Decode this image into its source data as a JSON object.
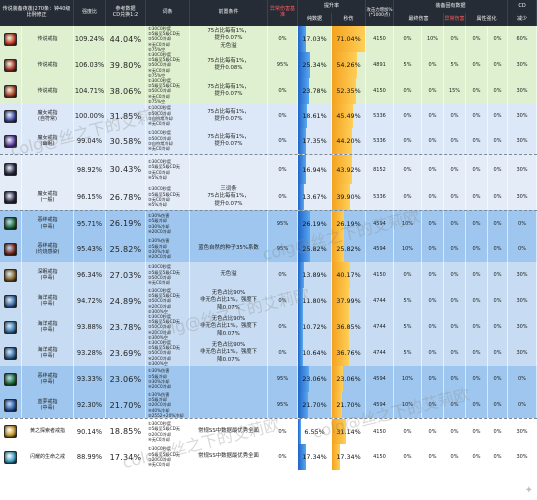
{
  "header": {
    "corner": "传说装备夜莲(270条：钟40级\n比例修正",
    "strength": "强度比",
    "cd_ref": "参考数据\nCD兑换1:2",
    "entry": "词条",
    "prereq": "前置条件",
    "anomaly": "异常伤害基准",
    "boost": "提升率",
    "pure": "纯数据",
    "sec": "秒伤",
    "base_dmg": "攻击力增加%\n(*1000点)",
    "equip_group": "装备固有数据",
    "eq_final": "最终伤害",
    "eq_overall": "整体",
    "eq_special": "特殊",
    "eq_anomaly": "异常伤害",
    "eq_attr": "属性强化",
    "cd_group": "CD",
    "cd_reduce": "减少"
  },
  "rows": [
    {
      "name": "传说戒指",
      "str": "109.24%",
      "cd": "44.04%",
      "desc": "①30C0秒度\n②5级至5级CD无\n③50C0冷却\n④无C0冷却\n⑤75%空",
      "pre": "75占比每有1%，\n提升0.07%\n无色溢",
      "anom": "0%",
      "pure": "17.03%",
      "pure_v": 17.03,
      "sec": "71.04%",
      "sec_v": 71.04,
      "b1": "4150",
      "eq": "0%",
      "e1": "10%",
      "e2": "0%",
      "e3": "0%",
      "e4": "0%",
      "cdr": "60%",
      "bg": "#dff0d0",
      "icon": "#c83a24"
    },
    {
      "name": "传说戒指",
      "str": "106.03%",
      "cd": "39.80%",
      "desc": "①30C0秒度\n②5级至5级CD无\n③50C0冷却\n④无C0冷却\n⑤75%空",
      "pre": "75占比每有1%，\n提升0.08%",
      "anom": "95%",
      "pure": "25.34%",
      "pure_v": 25.34,
      "sec": "54.26%",
      "sec_v": 54.26,
      "b1": "4891",
      "eq": "5%",
      "e1": "0%",
      "e2": "5%",
      "e3": "0%",
      "e4": "0%",
      "cdr": "30%",
      "bg": "#dff0d0",
      "icon": "#a8342a"
    },
    {
      "name": "传说戒指",
      "str": "104.71%",
      "cd": "38.06%",
      "desc": "①30C0秒度\n②5级至5级CD无\n③50C0冷却\n④无C0冷却\n⑤75%空",
      "pre": "75占比每有1%，\n提升0.07%",
      "anom": "0%",
      "pure": "23.78%",
      "pure_v": 23.78,
      "sec": "52.35%",
      "sec_v": 52.35,
      "b1": "4150",
      "eq": "0%",
      "e1": "0%",
      "e2": "15%",
      "e3": "0%",
      "e4": "0%",
      "cdr": "30%",
      "bg": "#dff0d0",
      "icon": "#b04428"
    },
    {
      "name": "魔女戒指\n(自符常)",
      "str": "100.00%",
      "cd": "31.85%",
      "desc": "①10C0秒度\n②50C0冷却\n③自符常冷却\n④无C0冷却",
      "pre": "75占比每有1%，\n提升0.07%",
      "anom": "0%",
      "pure": "18.61%",
      "pure_v": 18.61,
      "sec": "45.49%",
      "sec_v": 45.49,
      "b1": "5336",
      "eq": "0%",
      "e1": "0%",
      "e2": "0%",
      "e3": "0%",
      "e4": "0%",
      "cdr": "30%",
      "bg": "#dce8f7",
      "icon": "#3d4aa0"
    },
    {
      "name": "魔女戒指\n(幽眠)",
      "str": "99.04%",
      "cd": "30.58%",
      "desc": "①10C0秒度\n②50C0冷却\n③自符常冷却\n④无C0冷却",
      "pre": "75占比每有1%，\n提升0.07%",
      "anom": "0%",
      "pure": "17.35%",
      "pure_v": 17.35,
      "sec": "44.20%",
      "sec_v": 44.2,
      "b1": "5336",
      "eq": "0%",
      "e1": "0%",
      "e2": "0%",
      "e3": "0%",
      "e4": "0%",
      "cdr": "30%",
      "bg": "#dce8f7",
      "icon": "#5a3c9c"
    },
    {
      "name": "",
      "str": "98.92%",
      "cd": "30.43%",
      "desc": "①30C0秒度\n②5级至5级CD无\n③无C0冷却\n④5%冷却",
      "pre": "",
      "anom": "0%",
      "pure": "16.94%",
      "pure_v": 16.94,
      "sec": "43.92%",
      "sec_v": 43.92,
      "b1": "8152",
      "eq": "0%",
      "e1": "0%",
      "e2": "0%",
      "e3": "0%",
      "e4": "0%",
      "cdr": "30%",
      "bg": "#e4ecf8",
      "icon": "#2b2b46"
    },
    {
      "name": "魔女戒指\n(一般)",
      "str": "96.15%",
      "cd": "26.78%",
      "desc": "①30C0秒度\n②5级至5级CD无\n③无C0冷却\n④5%冷却",
      "pre": "三词条\n75占比每有1%，\n提升0.07%",
      "anom": "0%",
      "pure": "13.67%",
      "pure_v": 13.67,
      "sec": "39.90%",
      "sec_v": 39.9,
      "b1": "5336",
      "eq": "0%",
      "e1": "0%",
      "e2": "0%",
      "e3": "0%",
      "e4": "0%",
      "cdr": "30%",
      "bg": "#e4ecf8",
      "icon": "#2b2b46"
    },
    {
      "name": "恶绊戒指\n(中毒)",
      "str": "95.71%",
      "cd": "26.19%",
      "desc": "①30%伤害\n②5级冷却\n③30%冷却\n④20C0冷却",
      "pre": "",
      "anom": "95%",
      "pure": "26.19%",
      "pure_v": 26.19,
      "sec": "26.19%",
      "sec_v": 26.19,
      "b1": "4594",
      "eq": "10%",
      "e1": "0%",
      "e2": "0%",
      "e3": "0%",
      "e4": "0%",
      "cdr": "0%",
      "bg": "#9ec6ee",
      "icon": "#1f6e3a"
    },
    {
      "name": "恶绊戒指\n(灼烧感染)",
      "str": "95.43%",
      "cd": "25.82%",
      "desc": "①30%伤害\n②5级冷却\n③30%冷却\n④20C0冷却",
      "pre": "蓝色自然的种子35%系数",
      "anom": "95%",
      "pure": "25.82%",
      "pure_v": 25.82,
      "sec": "25.82%",
      "sec_v": 25.82,
      "b1": "4594",
      "eq": "10%",
      "e1": "0%",
      "e2": "0%",
      "e3": "0%",
      "e4": "0%",
      "cdr": "0%",
      "bg": "#9ec6ee",
      "icon": "#7a2a18"
    },
    {
      "name": "深眠戒指\n(中毒)",
      "str": "96.34%",
      "cd": "27.03%",
      "desc": "①30C0秒度\n②5级至5级CD无\n③50C0冷却\n④无C0冷却",
      "pre": "无色溢",
      "anom": "0%",
      "pure": "13.89%",
      "pure_v": 13.89,
      "sec": "40.17%",
      "sec_v": 40.17,
      "b1": "4150",
      "eq": "0%",
      "e1": "0%",
      "e2": "0%",
      "e3": "0%",
      "e4": "0%",
      "cdr": "30%",
      "bg": "#c7dcf2",
      "icon": "#8c6a2a"
    },
    {
      "name": "海洋戒指\n(中毒)",
      "str": "94.72%",
      "cd": "24.89%",
      "desc": "①30C0秒度\n②5级至5级CD无\n③50C0冷却\n④20C0冷却\n⑤300%空",
      "pre": "无色占比90%\n非无色占比1%，强度下\n降0.07%",
      "anom": "0%",
      "pure": "11.80%",
      "pure_v": 11.8,
      "sec": "37.99%",
      "sec_v": 37.99,
      "b1": "4744",
      "eq": "5%",
      "e1": "0%",
      "e2": "0%",
      "e3": "0%",
      "e4": "0%",
      "cdr": "30%",
      "bg": "#c7dcf2",
      "icon": "#3a6ea8"
    },
    {
      "name": "海洋戒指\n(中毒)",
      "str": "93.88%",
      "cd": "23.78%",
      "desc": "①30C0秒度\n②5级至5级CD无\n③50C0冷却\n④20C0冷却\n⑤300%空",
      "pre": "无色占比90%\n非无色占比1%，强度下\n降0.07%",
      "anom": "0%",
      "pure": "10.72%",
      "pure_v": 10.72,
      "sec": "36.85%",
      "sec_v": 36.85,
      "b1": "4744",
      "eq": "5%",
      "e1": "0%",
      "e2": "0%",
      "e3": "0%",
      "e4": "0%",
      "cdr": "30%",
      "bg": "#c7dcf2",
      "icon": "#3a7ab0"
    },
    {
      "name": "海洋戒指\n(中毒)",
      "str": "93.28%",
      "cd": "23.69%",
      "desc": "①30C0秒度\n②5级至5级CD无\n③50C0冷却\n④20C0冷却\n⑤300%空",
      "pre": "无色占比90%\n非无色占比1%，强度下\n降0.07%",
      "anom": "0%",
      "pure": "10.64%",
      "pure_v": 10.64,
      "sec": "36.76%",
      "sec_v": 36.76,
      "b1": "4744",
      "eq": "5%",
      "e1": "0%",
      "e2": "0%",
      "e3": "0%",
      "e4": "0%",
      "cdr": "30%",
      "bg": "#c7dcf2",
      "icon": "#2f6aa0"
    },
    {
      "name": "恶绊戒指\n(中毒)",
      "str": "93.33%",
      "cd": "23.06%",
      "desc": "①30%伤害\n②5级冷却\n③30%冷却\n④20C0冷却",
      "pre": "",
      "anom": "95%",
      "pure": "23.06%",
      "pure_v": 23.06,
      "sec": "23.06%",
      "sec_v": 23.06,
      "b1": "4594",
      "eq": "10%",
      "e1": "0%",
      "e2": "0%",
      "e3": "0%",
      "e4": "0%",
      "cdr": "0%",
      "bg": "#9ec6ee",
      "icon": "#1f6e3a"
    },
    {
      "name": "蓝夢戒指\n(中毒)",
      "str": "92.30%",
      "cd": "21.70%",
      "desc": "①30%伤害\n②5级冷却\n③20C0冷却\n④40%冷却\n⑤2552+20%冷却",
      "pre": "",
      "anom": "95%",
      "pure": "21.70%",
      "pure_v": 21.7,
      "sec": "21.70%",
      "sec_v": 21.7,
      "b1": "4594",
      "eq": "10%",
      "e1": "0%",
      "e2": "0%",
      "e3": "0%",
      "e4": "0%",
      "cdr": "0%",
      "bg": "#9ec6ee",
      "icon": "#2a5aa8"
    },
    {
      "name": "黄之探索者戒指",
      "str": "90.14%",
      "cd": "18.85%",
      "desc": "①30C0秒度\n②5级至5级CD无\n③20C0冷却\n④无C0冷却",
      "pre": "常规SS中数据最优秀全面",
      "anom": "0%",
      "pure": "6.55%",
      "pure_v": 6.55,
      "sec": "31.14%",
      "sec_v": 31.14,
      "b1": "4150",
      "eq": "0%",
      "e1": "0%",
      "e2": "0%",
      "e3": "0%",
      "e4": "0%",
      "cdr": "30%",
      "bg": "#ffffff",
      "icon": "#c89a2a"
    },
    {
      "name": "闪耀的生命之戒",
      "str": "88.99%",
      "cd": "17.34%",
      "desc": "①30C0秒度\n②5级至5级CD无\n③20C0冷却\n④无C0冷却",
      "pre": "常规SS中数据最优秀全面",
      "anom": "0%",
      "pure": "17.34%",
      "pure_v": 17.34,
      "sec": "17.34%",
      "sec_v": 17.34,
      "b1": "4150",
      "eq": "0%",
      "e1": "0%",
      "e2": "0%",
      "e3": "0%",
      "e4": "0%",
      "cdr": "30%",
      "bg": "#ffffff",
      "icon": "#3aa0c8"
    }
  ],
  "watermarks": [
    "colg@丝之下的艾莉欧",
    "colg@丝之下的艾莉欧",
    "colg@丝之下的艾莉欧",
    "colg@丝之下的艾莉欧",
    "colg@丝之下的艾莉欧"
  ]
}
